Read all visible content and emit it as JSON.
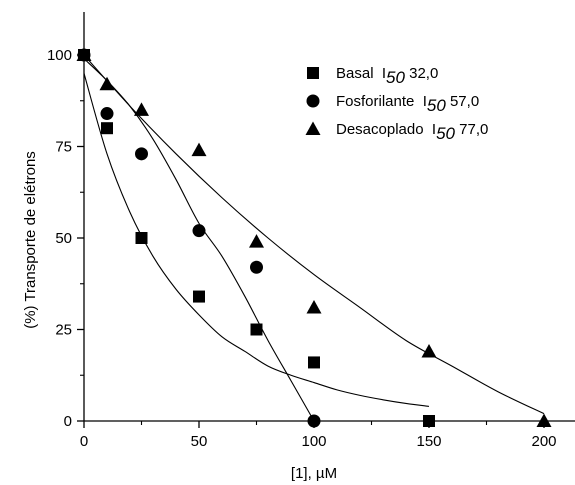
{
  "chart_data": {
    "type": "scatter",
    "title": "",
    "xlabel": "[1], µM",
    "ylabel": "(%) Transporte de elétrons",
    "xlim": [
      0,
      215
    ],
    "ylim": [
      0,
      108
    ],
    "xticks": [
      0,
      50,
      100,
      150,
      200
    ],
    "yticks": [
      0,
      25,
      50,
      75,
      100
    ],
    "grid": false,
    "legend_position": "top-right",
    "series": [
      {
        "name": "Basal",
        "label_prefix": "I",
        "label_sub": "50",
        "label_value": "32,0",
        "marker": "square",
        "x": [
          0,
          10,
          25,
          50,
          75,
          100,
          150
        ],
        "y": [
          100,
          80,
          50,
          34,
          25,
          16,
          0
        ],
        "fit_x": [
          0,
          10,
          20,
          30,
          40,
          50,
          60,
          70,
          80,
          90,
          100,
          110,
          120,
          130,
          140,
          150
        ],
        "fit_y": [
          95,
          73,
          57,
          45,
          36,
          29,
          23,
          19,
          15,
          12.5,
          10.5,
          8.5,
          7,
          5.8,
          4.8,
          4
        ]
      },
      {
        "name": "Fosforilante",
        "label_prefix": "I",
        "label_sub": "50",
        "label_value": "57,0",
        "marker": "circle",
        "x": [
          0,
          10,
          25,
          50,
          75,
          100
        ],
        "y": [
          100,
          84,
          73,
          52,
          42,
          0
        ],
        "fit_x": [
          0,
          10,
          20,
          30,
          40,
          50,
          60,
          70,
          80,
          90,
          100
        ],
        "fit_y": [
          99,
          93,
          86,
          77,
          66,
          54,
          45,
          34,
          22,
          11,
          0
        ]
      },
      {
        "name": "Desacoplado",
        "label_prefix": "I",
        "label_sub": "50",
        "label_value": "77,0",
        "marker": "triangle",
        "x": [
          0,
          10,
          25,
          50,
          75,
          100,
          150,
          200
        ],
        "y": [
          100,
          92,
          85,
          74,
          49,
          31,
          19,
          0
        ],
        "fit_x": [
          0,
          20,
          40,
          60,
          80,
          100,
          120,
          140,
          160,
          180,
          200
        ],
        "fit_y": [
          100,
          86,
          73,
          61,
          50,
          40,
          31,
          22,
          15,
          8,
          2
        ]
      }
    ]
  }
}
